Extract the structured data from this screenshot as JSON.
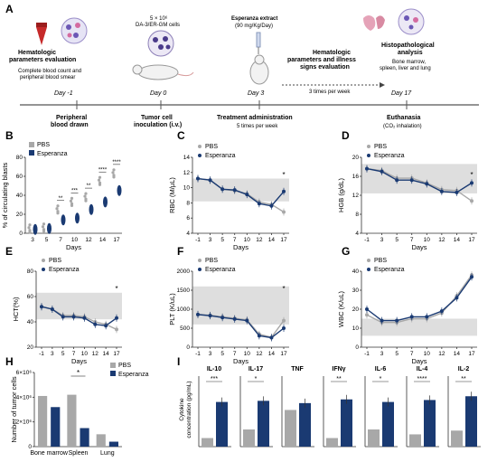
{
  "panel_a": {
    "label": "A",
    "events": [
      {
        "day": "Day -1",
        "above_title": "Hematologic\nparameters evaluation",
        "above_sub": "Complete blood count and\nperipheral blood smear",
        "below_title": "Peripheral\nblood drawn",
        "below_sub": ""
      },
      {
        "day": "Day 0",
        "above_title": "",
        "above_sub": "5 × 10⁶\nDA-3/ER-GM cells",
        "below_title": "Tumor cell\ninoculation (i.v.)",
        "below_sub": ""
      },
      {
        "day": "Day 3",
        "above_title": "Esperanza extract",
        "above_sub": "(90 mg/Kg/Day)",
        "below_title": "Treatment administration",
        "below_sub": "5 times per week"
      },
      {
        "day": "",
        "above_title": "Hematologic\nparameters and illness\nsigns evaluation",
        "above_sub": "3 times per week",
        "below_title": "",
        "below_sub": ""
      },
      {
        "day": "Day 17",
        "above_title": "Histopathological\nanalysis",
        "above_sub": "Bone marrow,\nspleen, liver and lung",
        "below_title": "Euthanasia",
        "below_sub": "(CO₂ inhalation)"
      }
    ]
  },
  "legend": {
    "pbs": "PBS",
    "esperanza": "Esperanza"
  },
  "colors": {
    "pbs": "#a8a8a8",
    "esperanza": "#1a3a72",
    "band": "#dedede"
  },
  "chart_data": [
    {
      "id": "B",
      "type": "scatter",
      "ylabel": "% of circulating blasts",
      "xlabel": "Days",
      "categories": [
        "3",
        "5",
        "7",
        "10",
        "12",
        "14",
        "17"
      ],
      "ylim": [
        0,
        80
      ],
      "yticks": [
        "0",
        "20",
        "40",
        "60",
        "80"
      ],
      "significance": [
        "",
        "",
        "**",
        "***",
        "**",
        "****",
        "****"
      ],
      "series": [
        {
          "name": "PBS",
          "medians": [
            5,
            6,
            25,
            33,
            38,
            55,
            63
          ]
        },
        {
          "name": "Esperanza",
          "medians": [
            4,
            5,
            14,
            16,
            25,
            33,
            45
          ]
        }
      ]
    },
    {
      "id": "C",
      "type": "line",
      "ylabel": "RBC (M/μL)",
      "xlabel": "Days",
      "categories": [
        "-1",
        "3",
        "5",
        "7",
        "10",
        "12",
        "14",
        "17"
      ],
      "ylim": [
        4,
        14
      ],
      "yticks": [
        "4",
        "6",
        "8",
        "10",
        "12",
        "14"
      ],
      "band": [
        8.2,
        11.2
      ],
      "sig": "*",
      "series": [
        {
          "name": "PBS",
          "values": [
            11.2,
            11.0,
            9.8,
            9.6,
            9.2,
            8.1,
            7.8,
            6.8
          ]
        },
        {
          "name": "Esperanza",
          "values": [
            11.2,
            11.0,
            9.8,
            9.7,
            9.1,
            7.9,
            7.6,
            9.5
          ]
        }
      ]
    },
    {
      "id": "D",
      "type": "line",
      "ylabel": "HGB (g/dL)",
      "xlabel": "Days",
      "categories": [
        "-1",
        "3",
        "5",
        "7",
        "10",
        "12",
        "14",
        "17"
      ],
      "ylim": [
        4,
        20
      ],
      "yticks": [
        "4",
        "8",
        "12",
        "16",
        "20"
      ],
      "band": [
        12.4,
        18.6
      ],
      "sig": "*",
      "series": [
        {
          "name": "PBS",
          "values": [
            17.6,
            17.2,
            15.6,
            15.6,
            14.6,
            13.2,
            13.0,
            10.8
          ]
        },
        {
          "name": "Esperanza",
          "values": [
            17.6,
            17.0,
            15.2,
            15.2,
            14.4,
            12.8,
            12.6,
            14.6
          ]
        }
      ]
    },
    {
      "id": "E",
      "type": "line",
      "ylabel": "HCT(%)",
      "xlabel": "Days",
      "categories": [
        "-1",
        "3",
        "5",
        "7",
        "10",
        "12",
        "14",
        "17"
      ],
      "ylim": [
        20,
        80
      ],
      "yticks": [
        "20",
        "40",
        "60",
        "80"
      ],
      "band": [
        42,
        63
      ],
      "sig": "*",
      "series": [
        {
          "name": "PBS",
          "values": [
            52,
            50,
            45,
            45,
            44,
            40,
            38,
            34
          ]
        },
        {
          "name": "Esperanza",
          "values": [
            52,
            50,
            44,
            44,
            43,
            38,
            37,
            43
          ]
        }
      ]
    },
    {
      "id": "F",
      "type": "line",
      "ylabel": "PLT (K/uL)",
      "xlabel": "Days",
      "categories": [
        "-1",
        "3",
        "5",
        "7",
        "10",
        "12",
        "14",
        "17"
      ],
      "ylim": [
        0,
        2000
      ],
      "yticks": [
        "0",
        "500",
        "1000",
        "1500",
        "2000"
      ],
      "band": [
        600,
        1600
      ],
      "sig": "*",
      "series": [
        {
          "name": "PBS",
          "values": [
            860,
            840,
            800,
            760,
            720,
            340,
            260,
            700
          ]
        },
        {
          "name": "Esperanza",
          "values": [
            860,
            830,
            780,
            740,
            700,
            300,
            250,
            500
          ]
        }
      ]
    },
    {
      "id": "G",
      "type": "line",
      "ylabel": "WBC (K/uL)",
      "xlabel": "Days",
      "categories": [
        "-1",
        "3",
        "5",
        "7",
        "10",
        "12",
        "14",
        "17"
      ],
      "ylim": [
        0,
        40
      ],
      "yticks": [
        "0",
        "10",
        "20",
        "30",
        "40"
      ],
      "band": [
        6,
        15
      ],
      "series": [
        {
          "name": "PBS",
          "values": [
            17,
            13,
            13,
            15,
            15,
            18,
            27,
            38
          ]
        },
        {
          "name": "Esperanza",
          "values": [
            20,
            14,
            14,
            16,
            16,
            19,
            26,
            37
          ]
        }
      ]
    },
    {
      "id": "H",
      "type": "bar",
      "ylabel": "Number of tumor cells",
      "categories": [
        "Bone marrow",
        "Spleen",
        "Lung"
      ],
      "ylim": [
        0,
        6000000
      ],
      "yticks": [
        "0",
        "2×10⁶",
        "4×10⁶",
        "6×10⁶"
      ],
      "sig": "*",
      "series": [
        {
          "name": "PBS",
          "values": [
            4100000,
            4200000,
            1000000
          ]
        },
        {
          "name": "Esperanza",
          "values": [
            3200000,
            1500000,
            400000
          ]
        }
      ]
    },
    {
      "id": "I",
      "type": "bar",
      "ylabel": "Cytokine\nconcentration (pg/mL)",
      "panels": [
        {
          "title": "IL-10",
          "sig": "***",
          "pbs": 0.25,
          "esp": 1.3,
          "ymax": 2
        },
        {
          "title": "IL-17",
          "sig": "*",
          "pbs": 0.3,
          "esp": 0.8,
          "ymax": 1.2
        },
        {
          "title": "TNF",
          "sig": "",
          "pbs": 8,
          "esp": 9.5,
          "ymax": 15
        },
        {
          "title": "IFNγ",
          "sig": "**",
          "pbs": 0.2,
          "esp": 1.1,
          "ymax": 1.6
        },
        {
          "title": "IL-6",
          "sig": "*",
          "pbs": 0.5,
          "esp": 1.3,
          "ymax": 2
        },
        {
          "title": "IL-4",
          "sig": "****",
          "pbs": 0.5,
          "esp": 1.9,
          "ymax": 2.8
        },
        {
          "title": "IL-2",
          "sig": "**",
          "pbs": 0.7,
          "esp": 2.2,
          "ymax": 3
        }
      ]
    }
  ]
}
